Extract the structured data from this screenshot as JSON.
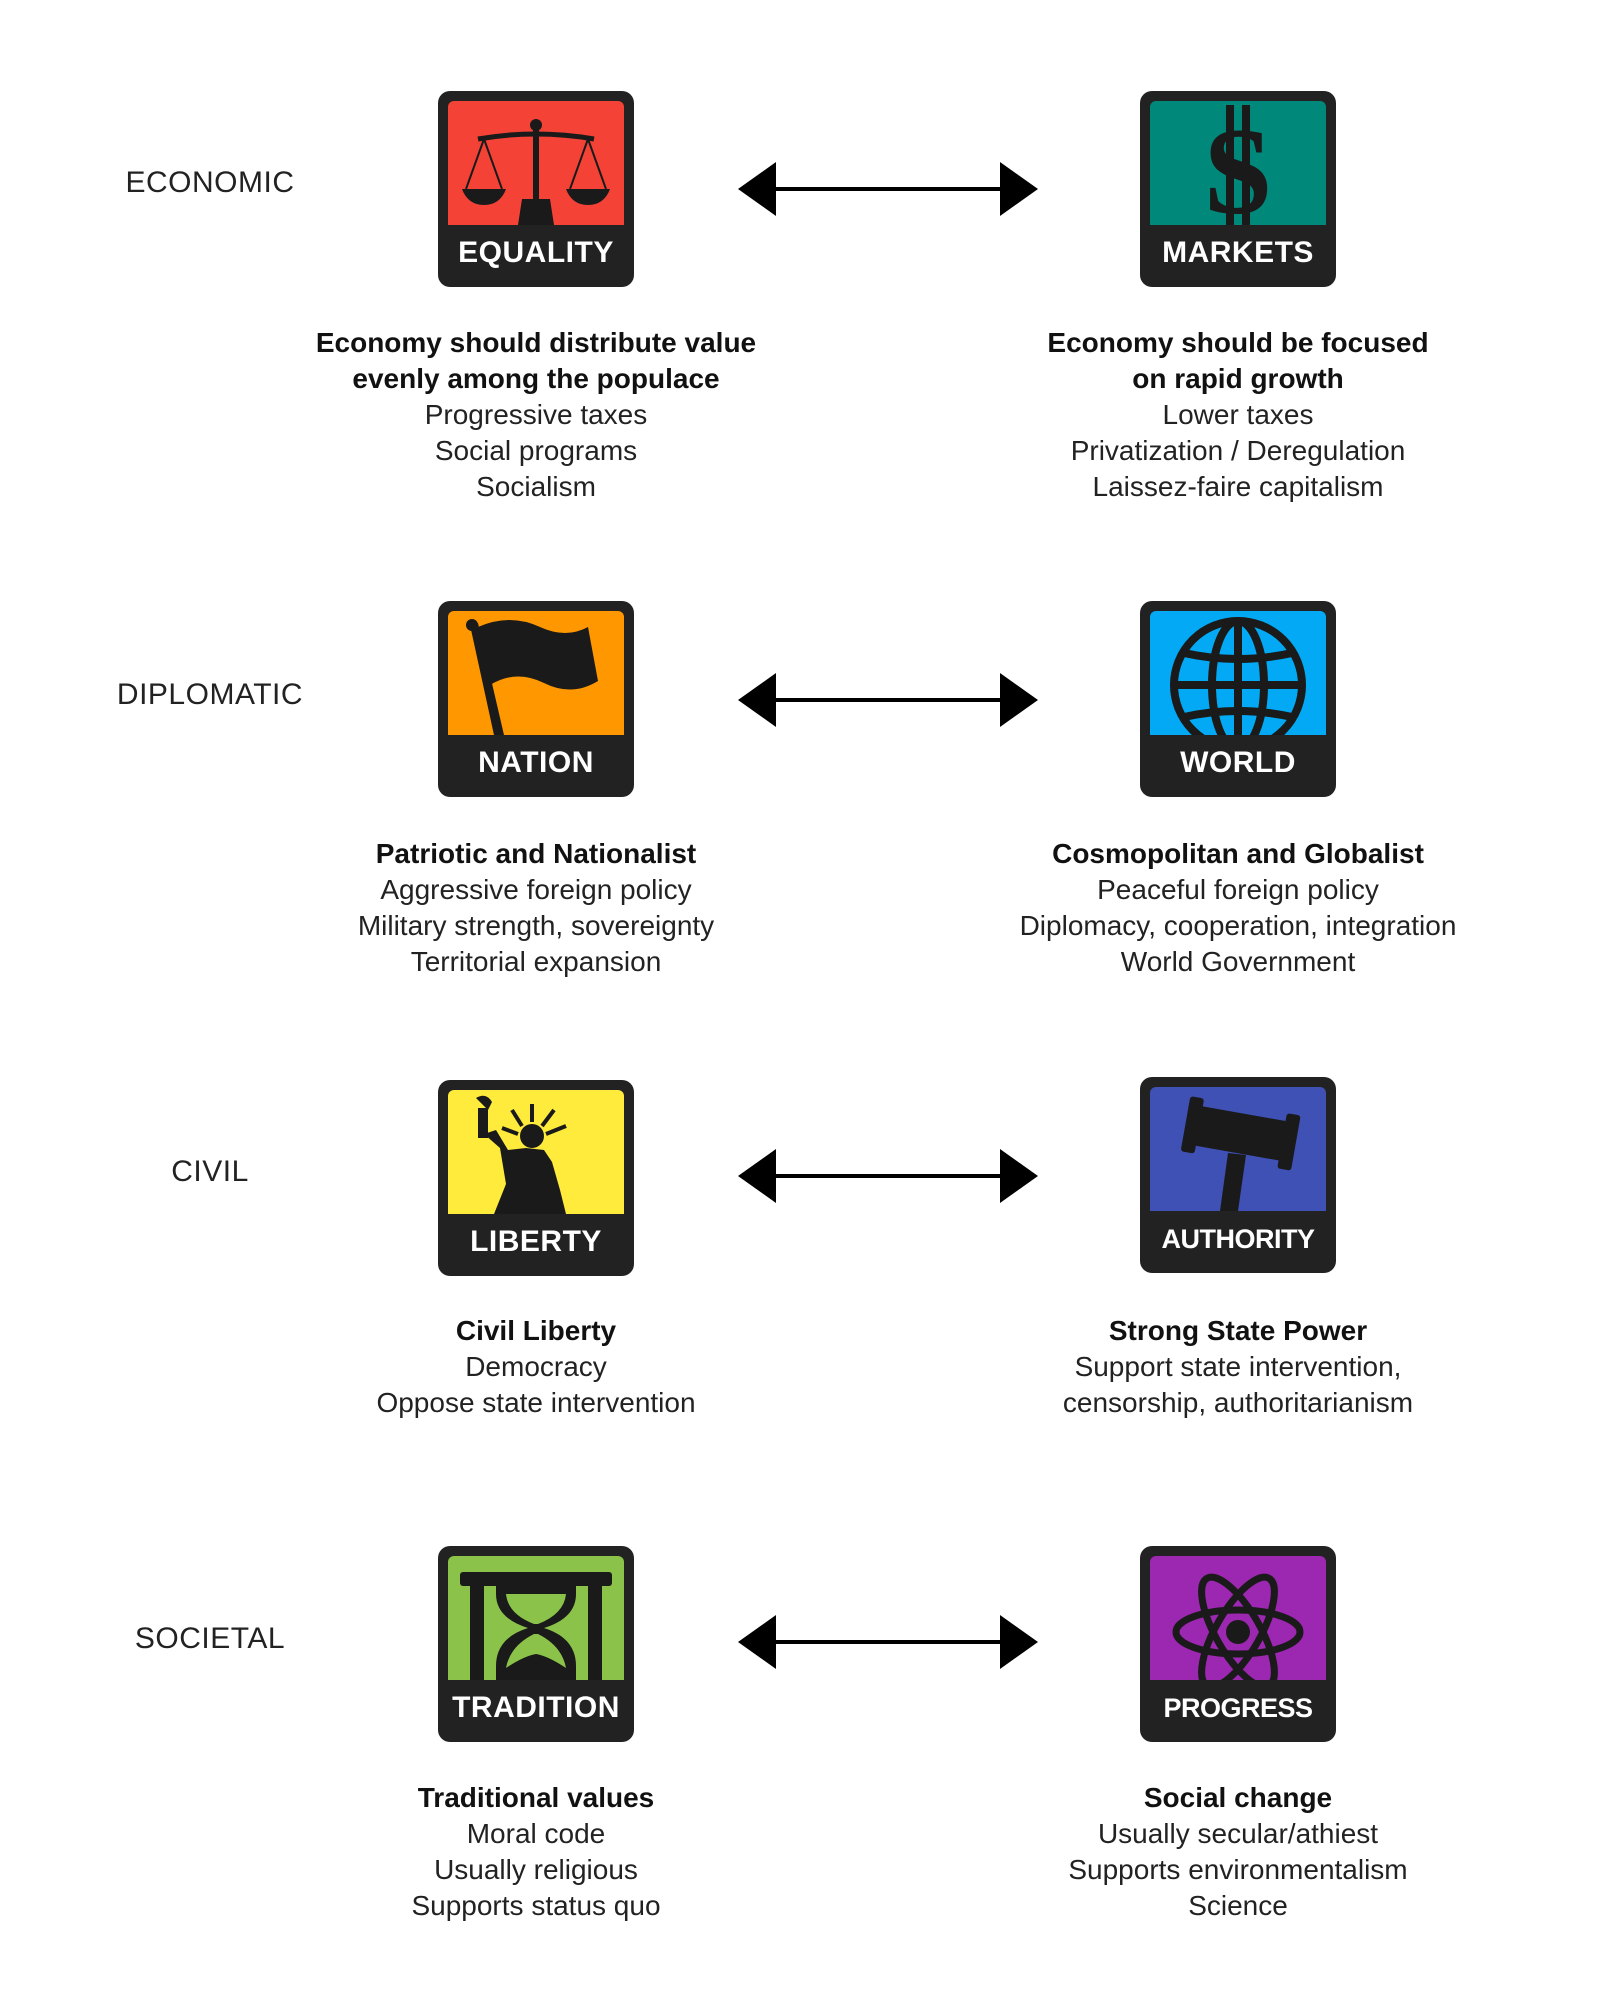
{
  "rows": [
    {
      "axis": "ECONOMIC",
      "left": {
        "label": "EQUALITY",
        "color": "#f44336",
        "icon": "scales-icon",
        "heading": [
          "Economy should distribute value",
          "evenly among the populace"
        ],
        "lines": [
          "Progressive taxes",
          "Social programs",
          "Socialism"
        ]
      },
      "right": {
        "label": "MARKETS",
        "color": "#00897b",
        "icon": "dollar-icon",
        "heading": [
          "Economy should be focused",
          "on rapid growth"
        ],
        "lines": [
          "Lower taxes",
          "Privatization / Deregulation",
          "Laissez-faire capitalism"
        ]
      }
    },
    {
      "axis": "DIPLOMATIC",
      "left": {
        "label": "NATION",
        "color": "#ff9800",
        "icon": "flag-icon",
        "heading": [
          "Patriotic and Nationalist"
        ],
        "lines": [
          "Aggressive foreign policy",
          "Military strength, sovereignty",
          "Territorial expansion"
        ]
      },
      "right": {
        "label": "WORLD",
        "color": "#03a9f4",
        "icon": "globe-icon",
        "heading": [
          "Cosmopolitan and Globalist"
        ],
        "lines": [
          "Peaceful foreign policy",
          "Diplomacy, cooperation, integration",
          "World Government"
        ]
      }
    },
    {
      "axis": "CIVIL",
      "left": {
        "label": "LIBERTY",
        "color": "#ffeb3b",
        "icon": "statue-of-liberty-icon",
        "heading": [
          "Civil Liberty"
        ],
        "lines": [
          "Democracy",
          "Oppose state intervention"
        ]
      },
      "right": {
        "label": "AUTHORITY",
        "color": "#3f51b5",
        "icon": "gavel-icon",
        "heading": [
          "Strong State Power"
        ],
        "lines": [
          "Support state intervention,",
          "censorship, authoritarianism"
        ]
      }
    },
    {
      "axis": "SOCIETAL",
      "left": {
        "label": "TRADITION",
        "color": "#8bc34a",
        "icon": "hourglass-icon",
        "heading": [
          "Traditional values"
        ],
        "lines": [
          "Moral code",
          "Usually religious",
          "Supports status quo"
        ]
      },
      "right": {
        "label": "PROGRESS",
        "color": "#9c27b0",
        "icon": "atom-icon",
        "heading": [
          "Social change"
        ],
        "lines": [
          "Usually secular/athiest",
          "Supports environmentalism",
          "Science"
        ]
      }
    }
  ]
}
